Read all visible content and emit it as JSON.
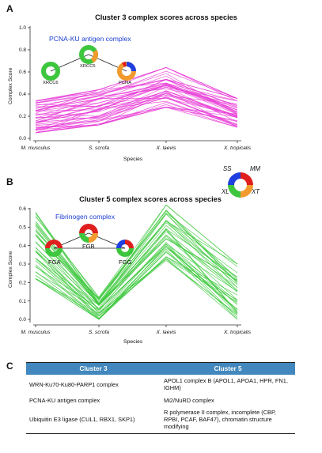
{
  "panels": {
    "a": {
      "letter": "A",
      "title": "Cluster 3 complex scores across species",
      "complex_title": "PCNA-KU antigen complex",
      "xlabel": "Species",
      "ylabel": "Complex Score",
      "categories": [
        "M. musculus",
        "S. scrofa",
        "X. laevis",
        "X. tropicalis"
      ],
      "yticks": [
        "0.0",
        "0.2",
        "0.4",
        "0.6",
        "0.8",
        "1.0"
      ],
      "nodes": [
        "XRCC6",
        "XRCC5",
        "PCNA"
      ]
    },
    "b": {
      "letter": "B",
      "title": "Cluster 5 complex scores across species",
      "complex_title": "Fibrinogen complex",
      "xlabel": "Species",
      "ylabel": "Complex Score",
      "categories": [
        "M. musculus",
        "S. scrofa",
        "X. laevis",
        "X. tropicalis"
      ],
      "yticks": [
        "0.0",
        "0.1",
        "0.2",
        "0.3",
        "0.4",
        "0.5",
        "0.6"
      ],
      "nodes": [
        "FGA",
        "FGB",
        "FGG"
      ]
    },
    "legend": {
      "ss": "SS",
      "mm": "MM",
      "xl": "XL",
      "xt": "XT"
    },
    "c": {
      "letter": "C",
      "headers": [
        "Cluster 3",
        "Cluster 5"
      ],
      "rows": [
        [
          "WRN-Ku70-Ku80-PARP1 complex",
          "APOL1 complex B (APOL1, APOA1, HPR, FN1, IGHM)"
        ],
        [
          "PCNA-KU antigen complex",
          "Mi2/NuRD complex"
        ],
        [
          "Ubiquitin E3 ligase (CUL1, RBX1, SKP1)",
          "R polymerase II complex, incomplete (CBP, RPBI, PCAF, BAF47), chromatin structure modifying"
        ]
      ]
    }
  },
  "colors": {
    "cluster3_lines": "#e83ad6",
    "cluster5_lines": "#3cc83c",
    "table_header": "#4287bd",
    "complex_title": "#1d3fd0",
    "ss": "#1f3fe0",
    "mm": "#e01e1e",
    "xt": "#f29a2e",
    "xl": "#3ec63e"
  },
  "chart_data": [
    {
      "type": "line",
      "title": "Cluster 3 complex scores across species",
      "xlabel": "Species",
      "ylabel": "Complex Score",
      "categories": [
        "M. musculus",
        "S. scrofa",
        "X. laevis",
        "X. tropicalis"
      ],
      "ylim": [
        0,
        1
      ],
      "series_count": 45,
      "series_profile": {
        "M. musculus": [
          0.05,
          0.34
        ],
        "S. scrofa": [
          0.12,
          0.44
        ],
        "X. laevis": [
          0.28,
          0.64
        ],
        "X. tropicalis": [
          0.1,
          0.36
        ]
      }
    },
    {
      "type": "line",
      "title": "Cluster 5 complex scores across species",
      "xlabel": "Species",
      "ylabel": "Complex Score",
      "categories": [
        "M. musculus",
        "S. scrofa",
        "X. laevis",
        "X. tropicalis"
      ],
      "ylim": [
        0,
        0.6
      ],
      "series_count": 40,
      "series_profile": {
        "M. musculus": [
          0.22,
          0.58
        ],
        "S. scrofa": [
          0.0,
          0.12
        ],
        "X. laevis": [
          0.32,
          0.62
        ],
        "X. tropicalis": [
          0.0,
          0.3
        ]
      }
    }
  ]
}
